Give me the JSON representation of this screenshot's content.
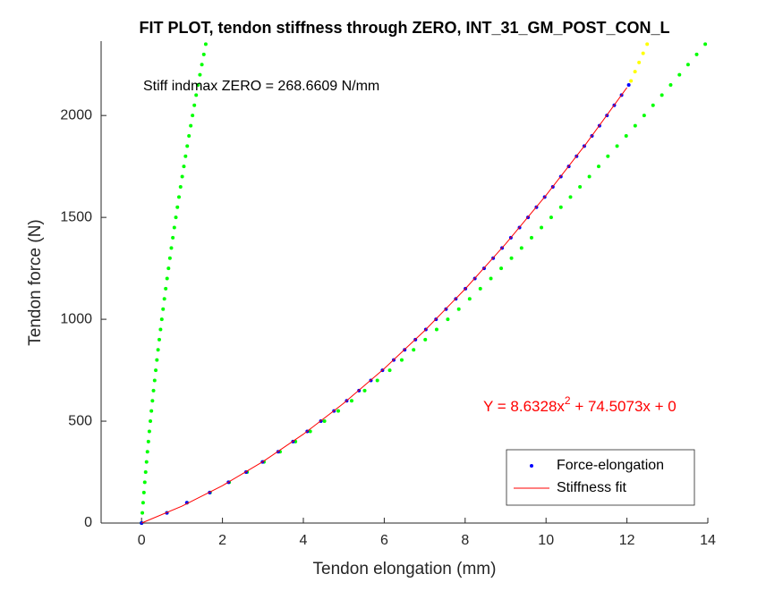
{
  "chart_data": {
    "type": "scatter",
    "title": "FIT PLOT, tendon stiffness through ZERO, INT_31_GM_POST_CON_L",
    "x_label": "Tendon elongation (mm)",
    "y_label": "Tendon force (N)",
    "annotations": [
      {
        "text": "Stiff indmax ZERO = 268.6609 N/mm",
        "color": "#000000"
      }
    ],
    "fit_equation": {
      "parts": [
        "Y = 8.6328x",
        "2",
        " + 74.5073x + 0"
      ],
      "color": "#ff0000"
    },
    "xlim": [
      -1,
      14
    ],
    "ylim": [
      0,
      2365
    ],
    "xticks": [
      0,
      2,
      4,
      6,
      8,
      10,
      12,
      14
    ],
    "yticks": [
      0,
      500,
      1000,
      1500,
      2000
    ],
    "legend": "southeast",
    "series": [
      {
        "color": "#00ff00",
        "mode": "markers",
        "x": [
          0,
          0.019,
          0.038,
          0.058,
          0.079,
          0.101,
          0.123,
          0.145,
          0.169,
          0.193,
          0.218,
          0.243,
          0.269,
          0.295,
          0.323,
          0.351,
          0.379,
          0.408,
          0.438,
          0.469,
          0.5,
          0.532,
          0.564,
          0.597,
          0.631,
          0.666,
          0.701,
          0.736,
          0.773,
          0.81,
          0.848,
          0.886,
          0.925,
          0.964,
          1.005,
          1.046,
          1.087,
          1.129,
          1.172,
          1.216,
          1.26,
          1.305,
          1.35,
          1.396,
          1.443,
          1.491,
          1.539,
          1.587
        ],
        "values": [
          0,
          50,
          100,
          150,
          200,
          250,
          300,
          350,
          400,
          450,
          500,
          550,
          600,
          650,
          700,
          750,
          800,
          850,
          900,
          950,
          1000,
          1050,
          1100,
          1150,
          1200,
          1250,
          1300,
          1350,
          1400,
          1450,
          1500,
          1550,
          1600,
          1650,
          1700,
          1750,
          1800,
          1850,
          1900,
          1950,
          2000,
          2050,
          2100,
          2150,
          2200,
          2250,
          2300,
          2350
        ]
      },
      {
        "color": "#00ff00",
        "mode": "markers",
        "x": [
          0,
          0.627,
          1.123,
          1.694,
          2.166,
          2.609,
          3.026,
          3.424,
          3.804,
          4.17,
          4.522,
          4.863,
          5.194,
          5.516,
          5.829,
          6.135,
          6.433,
          6.726,
          7.014,
          7.295,
          7.571,
          7.843,
          8.111,
          8.375,
          8.636,
          8.891,
          9.145,
          9.394,
          9.641,
          9.886,
          10.127,
          10.367,
          10.604,
          10.839,
          11.071,
          11.301,
          11.529,
          11.756,
          11.981,
          12.204,
          12.426,
          12.645,
          12.864,
          13.081,
          13.298,
          13.511,
          13.724,
          13.936
        ],
        "values": [
          0,
          50,
          100,
          150,
          200,
          250,
          300,
          350,
          400,
          450,
          500,
          550,
          600,
          650,
          700,
          750,
          800,
          850,
          900,
          950,
          1000,
          1050,
          1100,
          1150,
          1200,
          1250,
          1300,
          1350,
          1400,
          1450,
          1500,
          1550,
          1600,
          1650,
          1700,
          1750,
          1800,
          1850,
          1900,
          1950,
          2000,
          2050,
          2100,
          2150,
          2200,
          2250,
          2300,
          2350
        ]
      },
      {
        "color": "#ffff00",
        "mode": "markers",
        "x": [
          12.1,
          12.2,
          12.3,
          12.4,
          12.5
        ],
        "values": [
          2170,
          2215,
          2260,
          2305,
          2350
        ]
      },
      {
        "name": "Force-elongation",
        "color": "#0000ff",
        "mode": "markers",
        "x": [
          0,
          0.626,
          1.119,
          1.684,
          2.149,
          2.583,
          2.99,
          3.377,
          3.744,
          4.096,
          4.433,
          4.758,
          5.072,
          5.376,
          5.67,
          5.956,
          6.234,
          6.505,
          6.77,
          7.028,
          7.28,
          7.527,
          7.769,
          8.007,
          8.24,
          8.468,
          8.693,
          8.913,
          9.13,
          9.344,
          9.554,
          9.762,
          9.966,
          10.168,
          10.366,
          10.562,
          10.755,
          10.946,
          11.135,
          11.321,
          11.506,
          11.687,
          11.867,
          12.045
        ],
        "values": [
          0,
          50,
          100,
          150,
          200,
          250,
          300,
          350,
          400,
          450,
          500,
          550,
          600,
          650,
          700,
          750,
          800,
          850,
          900,
          950,
          1000,
          1050,
          1100,
          1150,
          1200,
          1250,
          1300,
          1350,
          1400,
          1450,
          1500,
          1550,
          1600,
          1650,
          1700,
          1750,
          1800,
          1850,
          1900,
          1950,
          2000,
          2050,
          2100,
          2150
        ]
      },
      {
        "name": "Stiffness fit",
        "color": "#ff0000",
        "mode": "line",
        "x": [
          0,
          1,
          2,
          3,
          4,
          5,
          6,
          7,
          8,
          9,
          10,
          11,
          12
        ],
        "values": [
          0,
          83.14,
          183.55,
          301.22,
          436.15,
          588.36,
          757.82,
          944.56,
          1148.56,
          1369.83,
          1608.35,
          1864.15,
          2137.21
        ]
      }
    ]
  }
}
